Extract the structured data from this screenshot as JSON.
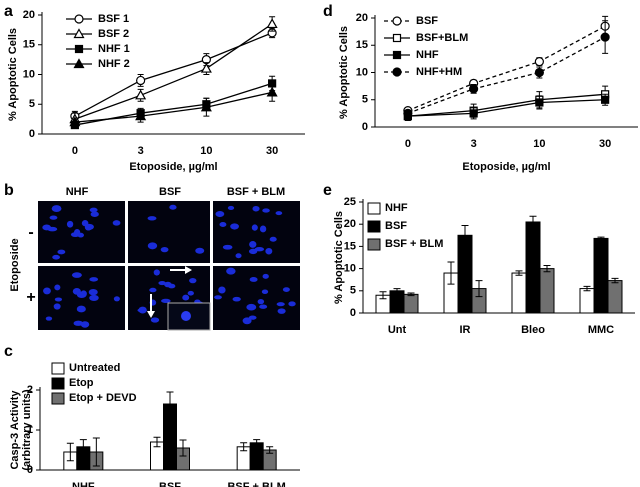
{
  "chart_data": [
    {
      "type": "line",
      "panel": "a",
      "xlabel": "Etoposide, µg/ml",
      "ylabel": "% Apoptotic Cells",
      "categories": [
        "0",
        "3",
        "10",
        "30"
      ],
      "ylim": [
        0,
        20
      ],
      "yticks": [
        0,
        5,
        10,
        15,
        20
      ],
      "series": [
        {
          "name": "BSF 1",
          "color": "#000000",
          "marker": "open-circle",
          "line_style": "solid",
          "values": [
            3,
            9,
            12.5,
            17
          ],
          "errors": [
            0.8,
            1,
            1,
            0.8
          ]
        },
        {
          "name": "BSF 2",
          "color": "#000000",
          "marker": "open-triangle",
          "line_style": "solid",
          "values": [
            2.5,
            6.5,
            11,
            18.5
          ],
          "errors": [
            1,
            1,
            1,
            1.2
          ]
        },
        {
          "name": "NHF 1",
          "color": "#000000",
          "marker": "filled-square",
          "line_style": "solid",
          "values": [
            1.5,
            3.5,
            5,
            8.5
          ],
          "errors": [
            0.5,
            0.8,
            1,
            1.2
          ]
        },
        {
          "name": "NHF 2",
          "color": "#000000",
          "marker": "filled-triangle",
          "line_style": "solid",
          "values": [
            2,
            3,
            4.5,
            7
          ],
          "errors": [
            0.5,
            1,
            1.5,
            1.5
          ]
        }
      ]
    },
    {
      "type": "line",
      "panel": "d",
      "xlabel": "Etoposide, µg/ml",
      "ylabel": "% Apoptotic Cells",
      "categories": [
        "0",
        "3",
        "10",
        "30"
      ],
      "ylim": [
        0,
        20
      ],
      "yticks": [
        0,
        5,
        10,
        15,
        20
      ],
      "series": [
        {
          "name": "BSF",
          "color": "#000000",
          "marker": "open-circle",
          "line_style": "dashed",
          "values": [
            3,
            8,
            12,
            18.5
          ],
          "errors": [
            0.5,
            0.6,
            0.7,
            1.8
          ]
        },
        {
          "name": "BSF+BLM",
          "color": "#000000",
          "marker": "open-square",
          "line_style": "solid",
          "values": [
            2,
            3,
            5,
            6
          ],
          "errors": [
            0.5,
            1.2,
            1.5,
            1.5
          ]
        },
        {
          "name": "NHF",
          "color": "#000000",
          "marker": "filled-square",
          "line_style": "solid",
          "values": [
            2,
            2.5,
            4.5,
            5
          ],
          "errors": [
            0.8,
            1,
            1.2,
            1
          ]
        },
        {
          "name": "NHF+HM",
          "color": "#000000",
          "marker": "filled-circle",
          "line_style": "dashed",
          "values": [
            2.5,
            7,
            10,
            16.5
          ],
          "errors": [
            0.6,
            0.8,
            1,
            3
          ]
        }
      ]
    },
    {
      "type": "bar",
      "panel": "c",
      "ylabel": [
        "Casp-3 Activity",
        "(arbitrary units)"
      ],
      "categories": [
        "NHF",
        "BSF",
        "BSF + BLM"
      ],
      "ylim": [
        0,
        2
      ],
      "yticks": [
        0,
        1,
        2
      ],
      "series": [
        {
          "name": "Untreated",
          "color": "#ffffff",
          "values": [
            0.45,
            0.7,
            0.58
          ],
          "errors": [
            0.22,
            0.12,
            0.1
          ]
        },
        {
          "name": "Etop",
          "color": "#000000",
          "values": [
            0.58,
            1.65,
            0.68
          ],
          "errors": [
            0.18,
            0.3,
            0.08
          ]
        },
        {
          "name": "Etop + DEVD",
          "color": "#707070",
          "values": [
            0.45,
            0.55,
            0.5
          ],
          "errors": [
            0.35,
            0.2,
            0.08
          ]
        }
      ]
    },
    {
      "type": "bar",
      "panel": "e",
      "ylabel": "% Apoptotic Cells",
      "categories": [
        "Unt",
        "IR",
        "Bleo",
        "MMC"
      ],
      "ylim": [
        0,
        25
      ],
      "yticks": [
        0,
        5,
        10,
        15,
        20,
        25
      ],
      "series": [
        {
          "name": "NHF",
          "color": "#ffffff",
          "values": [
            4,
            9,
            9,
            5.5
          ],
          "errors": [
            0.8,
            2.5,
            0.5,
            0.5
          ]
        },
        {
          "name": "BSF",
          "color": "#000000",
          "values": [
            5,
            17.5,
            20.5,
            16.8
          ],
          "errors": [
            0.5,
            2.2,
            1.3,
            0.3
          ]
        },
        {
          "name": "BSF + BLM",
          "color": "#707070",
          "values": [
            4.2,
            5.5,
            10,
            7.3
          ],
          "errors": [
            0.3,
            1.8,
            0.7,
            0.5
          ]
        }
      ]
    }
  ],
  "image_panel": {
    "panel": "b",
    "columns": [
      "NHF",
      "BSF",
      "BSF + BLM"
    ],
    "row_title": "Etoposide",
    "rows": [
      "-",
      "+"
    ]
  }
}
